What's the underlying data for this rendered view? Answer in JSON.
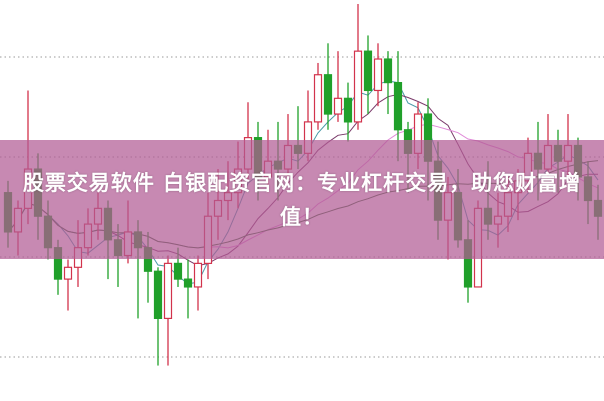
{
  "banner": {
    "text": "股票交易软件 白银配资官网：专业杠杆交易，助您财富增值！"
  },
  "chart_data": {
    "type": "candlestick",
    "title": "",
    "xlabel": "",
    "ylabel": "",
    "ylim": [
      0,
      100
    ],
    "grid": "horizontal dotted",
    "colors": {
      "up": "#d2334c",
      "down": "#20a02a",
      "ma": [
        "#4a9aa8",
        "#7a3a6a",
        "#e08ad8",
        "#3c6e3c"
      ]
    },
    "moving_averages": [
      5,
      10,
      20,
      40
    ],
    "candles": [
      [
        52,
        42,
        55,
        38
      ],
      [
        42,
        48,
        50,
        36
      ],
      [
        48,
        58,
        78,
        44
      ],
      [
        58,
        46,
        62,
        40
      ],
      [
        46,
        38,
        50,
        35
      ],
      [
        38,
        30,
        40,
        26
      ],
      [
        30,
        33,
        35,
        22
      ],
      [
        33,
        38,
        45,
        28
      ],
      [
        38,
        44,
        48,
        36
      ],
      [
        44,
        48,
        52,
        40
      ],
      [
        48,
        40,
        50,
        30
      ],
      [
        40,
        36,
        44,
        28
      ],
      [
        36,
        42,
        50,
        34
      ],
      [
        42,
        38,
        45,
        20
      ],
      [
        38,
        32,
        42,
        24
      ],
      [
        32,
        20,
        33,
        8
      ],
      [
        20,
        34,
        36,
        8
      ],
      [
        34,
        30,
        38,
        28
      ],
      [
        30,
        28,
        35,
        20
      ],
      [
        28,
        34,
        36,
        22
      ],
      [
        34,
        46,
        52,
        30
      ],
      [
        46,
        50,
        58,
        40
      ],
      [
        50,
        52,
        60,
        45
      ],
      [
        52,
        58,
        65,
        48
      ],
      [
        58,
        66,
        75,
        55
      ],
      [
        66,
        56,
        70,
        50
      ],
      [
        56,
        60,
        68,
        52
      ],
      [
        60,
        58,
        70,
        50
      ],
      [
        58,
        64,
        72,
        54
      ],
      [
        64,
        62,
        74,
        58
      ],
      [
        62,
        70,
        78,
        60
      ],
      [
        70,
        82,
        85,
        68
      ],
      [
        82,
        72,
        90,
        68
      ],
      [
        72,
        76,
        88,
        70
      ],
      [
        76,
        70,
        80,
        65
      ],
      [
        70,
        88,
        100,
        68
      ],
      [
        88,
        78,
        92,
        72
      ],
      [
        78,
        86,
        90,
        74
      ],
      [
        86,
        80,
        88,
        72
      ],
      [
        80,
        68,
        88,
        60
      ],
      [
        68,
        62,
        70,
        52
      ],
      [
        62,
        72,
        75,
        58
      ],
      [
        72,
        60,
        76,
        50
      ],
      [
        60,
        45,
        65,
        40
      ],
      [
        45,
        52,
        56,
        35
      ],
      [
        52,
        40,
        58,
        38
      ],
      [
        40,
        28,
        45,
        24
      ],
      [
        28,
        48,
        50,
        28
      ],
      [
        48,
        44,
        60,
        40
      ],
      [
        44,
        46,
        52,
        38
      ],
      [
        46,
        52,
        56,
        42
      ],
      [
        52,
        55,
        58,
        45
      ],
      [
        55,
        62,
        66,
        52
      ],
      [
        62,
        58,
        70,
        50
      ],
      [
        58,
        64,
        72,
        56
      ],
      [
        64,
        60,
        68,
        52
      ],
      [
        60,
        64,
        72,
        56
      ],
      [
        64,
        56,
        66,
        50
      ],
      [
        56,
        50,
        60,
        44
      ],
      [
        50,
        46,
        54,
        40
      ]
    ]
  }
}
